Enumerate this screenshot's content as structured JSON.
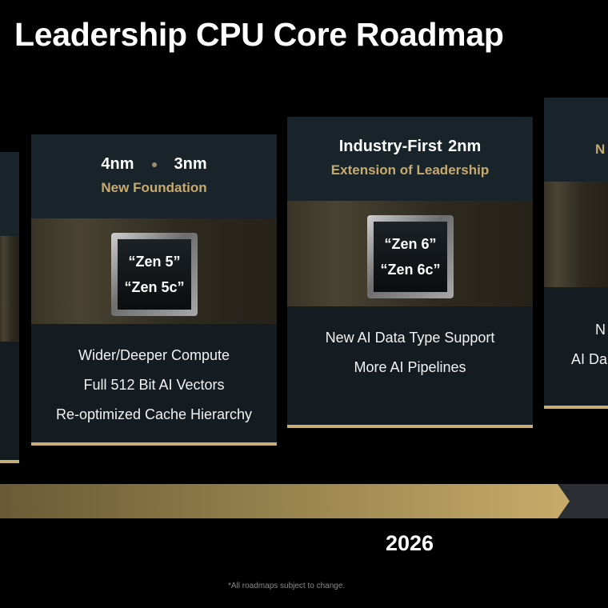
{
  "title": "Leadership CPU Core Roadmap",
  "cards": [
    {
      "headline_left": "4nm",
      "headline_right": "3nm",
      "subtitle": "New Foundation",
      "chip": [
        "“Zen 5”",
        "“Zen 5c”"
      ],
      "features": [
        "Wider/Deeper Compute",
        "Full 512 Bit AI Vectors",
        "Re-optimized Cache Hierarchy"
      ]
    },
    {
      "headline": "Industry-First 2nm",
      "subtitle": "Extension of Leadership",
      "chip": [
        "“Zen 6”",
        "“Zen 6c”"
      ],
      "features": [
        "New AI Data Type Support",
        "More AI Pipelines"
      ]
    },
    {
      "headline": "N",
      "features": [
        "N",
        "AI Da"
      ]
    }
  ],
  "timeline": {
    "year": "2026"
  },
  "footnote": "*All roadmaps subject to change.",
  "colors": {
    "accent_gold": "#c8aa6c",
    "card_bg": "#18232a",
    "background": "#000000"
  }
}
